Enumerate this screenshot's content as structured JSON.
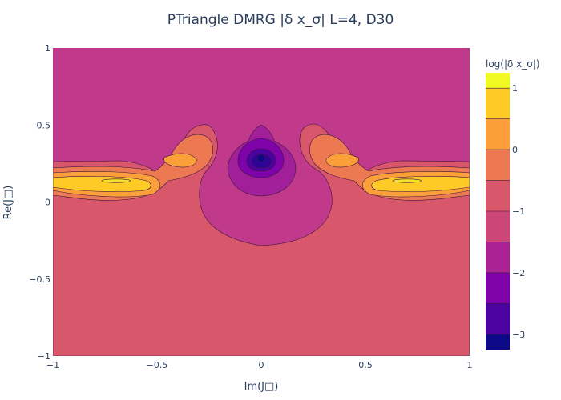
{
  "chart_data": {
    "type": "contour",
    "title": "PTriangle DMRG |δ x_σ| L=4, D30",
    "xlabel": "Im(J□)",
    "ylabel": "Re(J□)",
    "xlim": [
      -1,
      1
    ],
    "ylim": [
      -1,
      1
    ],
    "x_ticks": [
      {
        "value": -1,
        "label": "−1"
      },
      {
        "value": -0.5,
        "label": "−0.5"
      },
      {
        "value": 0,
        "label": "0"
      },
      {
        "value": 0.5,
        "label": "0.5"
      },
      {
        "value": 1,
        "label": "1"
      }
    ],
    "y_ticks": [
      {
        "value": -1,
        "label": "−1"
      },
      {
        "value": -0.5,
        "label": "−0.5"
      },
      {
        "value": 0,
        "label": "0"
      },
      {
        "value": 0.5,
        "label": "0.5"
      },
      {
        "value": 1,
        "label": "1"
      }
    ],
    "colorbar": {
      "title": "log(|δ x_σ|)",
      "range": [
        -3.25,
        1.25
      ],
      "ticks": [
        {
          "value": 1,
          "label": "1"
        },
        {
          "value": 0,
          "label": "0"
        },
        {
          "value": -1,
          "label": "−1"
        },
        {
          "value": -2,
          "label": "−2"
        },
        {
          "value": -3,
          "label": "−3"
        }
      ],
      "bands": [
        {
          "from": -3.25,
          "to": -3.0,
          "color": "#0d0887"
        },
        {
          "from": -3.0,
          "to": -2.5,
          "color": "#4c02a1"
        },
        {
          "from": -2.5,
          "to": -2.0,
          "color": "#7e03a8"
        },
        {
          "from": -2.0,
          "to": -1.5,
          "color": "#a92395"
        },
        {
          "from": -1.5,
          "to": -1.0,
          "color": "#cc4778"
        },
        {
          "from": -1.0,
          "to": -0.5,
          "color": "#d8576b"
        },
        {
          "from": -0.5,
          "to": 0.0,
          "color": "#ed7953"
        },
        {
          "from": 0.0,
          "to": 0.5,
          "color": "#fb9f3a"
        },
        {
          "from": 0.5,
          "to": 1.0,
          "color": "#fdca26"
        },
        {
          "from": 1.0,
          "to": 1.25,
          "color": "#f0f921"
        }
      ]
    },
    "regions": [
      {
        "name": "upper-plateau",
        "level": -1.25,
        "color": "#c0398a"
      },
      {
        "name": "lower-plateau",
        "level": -0.75,
        "color": "#d8576b"
      },
      {
        "name": "left-lobe-outer",
        "level": -0.25,
        "color": "#ed7953"
      },
      {
        "name": "left-lobe-band",
        "level": 0.25,
        "color": "#fb9f3a"
      },
      {
        "name": "left-lobe-core",
        "level": 0.75,
        "color": "#fdca26"
      },
      {
        "name": "right-lobe-outer",
        "level": -0.25,
        "color": "#ed7953"
      },
      {
        "name": "right-lobe-band",
        "level": 0.25,
        "color": "#fb9f3a"
      },
      {
        "name": "right-lobe-core",
        "level": 0.75,
        "color": "#fdca26"
      },
      {
        "name": "center-well-1",
        "level": -1.75,
        "color": "#a21f9a"
      },
      {
        "name": "center-well-2",
        "level": -2.25,
        "color": "#7e03a8"
      },
      {
        "name": "center-well-3",
        "level": -2.75,
        "color": "#4c02a1"
      },
      {
        "name": "center-well-4",
        "level": -3.1,
        "color": "#0d0887"
      }
    ]
  }
}
